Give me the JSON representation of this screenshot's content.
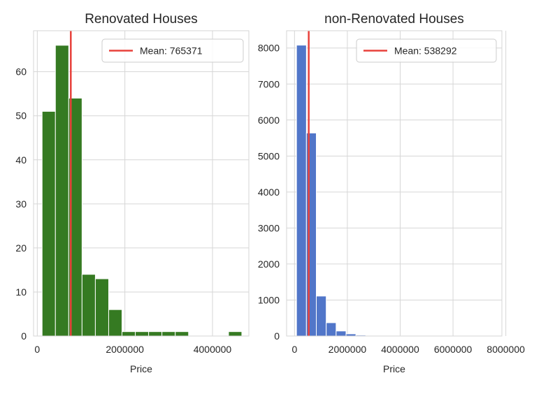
{
  "chart_data": [
    {
      "type": "bar",
      "title": "Renovated Houses",
      "xlabel": "Price",
      "ylabel": "",
      "xlim": [
        -85000,
        4830000
      ],
      "ylim": [
        0,
        69.3
      ],
      "xticks": [
        0,
        2000000,
        4000000
      ],
      "yticks": [
        0,
        10,
        20,
        30,
        40,
        50,
        60
      ],
      "grid": true,
      "legend_position": "top-right",
      "bins": [
        {
          "x0": 110000,
          "x1": 414000,
          "count": 51
        },
        {
          "x0": 414000,
          "x1": 718000,
          "count": 66
        },
        {
          "x0": 718000,
          "x1": 1022000,
          "count": 54
        },
        {
          "x0": 1022000,
          "x1": 1326000,
          "count": 14
        },
        {
          "x0": 1326000,
          "x1": 1630000,
          "count": 13
        },
        {
          "x0": 1630000,
          "x1": 1934000,
          "count": 6
        },
        {
          "x0": 1934000,
          "x1": 2238000,
          "count": 1
        },
        {
          "x0": 2238000,
          "x1": 2542000,
          "count": 1
        },
        {
          "x0": 2542000,
          "x1": 2846000,
          "count": 1
        },
        {
          "x0": 2846000,
          "x1": 3150000,
          "count": 1
        },
        {
          "x0": 3150000,
          "x1": 3454000,
          "count": 1
        },
        {
          "x0": 3454000,
          "x1": 3758000,
          "count": 0
        },
        {
          "x0": 3758000,
          "x1": 4062000,
          "count": 0
        },
        {
          "x0": 4062000,
          "x1": 4366000,
          "count": 0
        },
        {
          "x0": 4366000,
          "x1": 4670000,
          "count": 1
        }
      ],
      "mean": {
        "value": 765371,
        "label": "Mean: 765371"
      },
      "bar_color": "#357a22",
      "mean_color": "#e8413b"
    },
    {
      "type": "bar",
      "title": "non-Renovated Houses",
      "xlabel": "Price",
      "ylabel": "",
      "xlim": [
        -300000,
        7850000
      ],
      "ylim": [
        0,
        8480
      ],
      "xticks": [
        0,
        2000000,
        4000000,
        6000000,
        8000000
      ],
      "xtick_labels": [
        "0",
        "2000000",
        "4000000",
        "6000000",
        "8000000"
      ],
      "yticks": [
        0,
        1000,
        2000,
        3000,
        4000,
        5000,
        6000,
        7000,
        8000
      ],
      "grid": true,
      "legend_position": "top-right",
      "bins": [
        {
          "x0": 75000,
          "x1": 450000,
          "count": 8080
        },
        {
          "x0": 450000,
          "x1": 825000,
          "count": 5640
        },
        {
          "x0": 825000,
          "x1": 1200000,
          "count": 1110
        },
        {
          "x0": 1200000,
          "x1": 1575000,
          "count": 370
        },
        {
          "x0": 1575000,
          "x1": 1950000,
          "count": 140
        },
        {
          "x0": 1950000,
          "x1": 2325000,
          "count": 60
        },
        {
          "x0": 2325000,
          "x1": 2700000,
          "count": 25
        },
        {
          "x0": 2700000,
          "x1": 3075000,
          "count": 12
        },
        {
          "x0": 3075000,
          "x1": 3450000,
          "count": 6
        },
        {
          "x0": 3450000,
          "x1": 3825000,
          "count": 4
        },
        {
          "x0": 3825000,
          "x1": 4200000,
          "count": 2
        }
      ],
      "mean": {
        "value": 538292,
        "label": "Mean: 538292"
      },
      "bar_color": "#5176c9",
      "mean_color": "#e8413b"
    }
  ],
  "colors": {
    "grid": "#d6d6d6",
    "text": "#262626",
    "legend_border": "#cccccc"
  }
}
